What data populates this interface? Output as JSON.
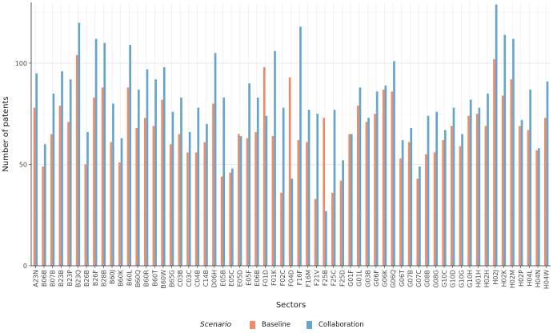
{
  "chart_data": {
    "type": "bar",
    "title": "",
    "xlabel": "Sectors",
    "ylabel": "Number of patents",
    "ylim": [
      0,
      130
    ],
    "yticks": [
      0,
      50,
      100
    ],
    "grid": true,
    "legend": {
      "title": "Scenario",
      "position": "bottom"
    },
    "categories": [
      "A23N",
      "B06B",
      "B07B",
      "B23B",
      "B23P",
      "B23Q",
      "B26B",
      "B26F",
      "B28B",
      "B60J",
      "B60K",
      "B60L",
      "B60Q",
      "B60R",
      "B60T",
      "B60W",
      "B65G",
      "C03B",
      "C03C",
      "C04B",
      "C14B",
      "D06H",
      "E05B",
      "E05C",
      "E05D",
      "E05F",
      "E06B",
      "F01D",
      "F01K",
      "F02C",
      "F04D",
      "F16F",
      "F16M",
      "F21V",
      "F25B",
      "F25C",
      "F25D",
      "G01F",
      "G01L",
      "G03B",
      "G06F",
      "G06K",
      "G06Q",
      "G06T",
      "G07B",
      "G07C",
      "G08B",
      "G08G",
      "G10C",
      "G10D",
      "G10G",
      "G10H",
      "H01H",
      "H02H",
      "H02J",
      "H02K",
      "H02M",
      "H02P",
      "H04L",
      "H04N",
      "H04W"
    ],
    "series": [
      {
        "name": "Baseline",
        "color": "#F08C67",
        "values": [
          78,
          49,
          65,
          79,
          71,
          104,
          50,
          83,
          88,
          61,
          51,
          88,
          68,
          73,
          69,
          82,
          60,
          65,
          56,
          56,
          61,
          80,
          44,
          46,
          65,
          63,
          66,
          98,
          64,
          36,
          93,
          62,
          61,
          33,
          73,
          36,
          42,
          65,
          79,
          71,
          75,
          87,
          86,
          53,
          61,
          43,
          55,
          56,
          62,
          69,
          59,
          74,
          75,
          69,
          102,
          84,
          92,
          69,
          67,
          57,
          73
        ]
      },
      {
        "name": "Collaboration",
        "color": "#66A6CE",
        "values": [
          95,
          60,
          85,
          96,
          92,
          120,
          66,
          112,
          110,
          80,
          63,
          109,
          87,
          97,
          92,
          98,
          76,
          83,
          66,
          78,
          70,
          105,
          83,
          48,
          64,
          90,
          83,
          74,
          106,
          78,
          43,
          118,
          77,
          75,
          27,
          77,
          52,
          65,
          88,
          73,
          86,
          89,
          101,
          62,
          68,
          49,
          74,
          76,
          67,
          78,
          65,
          82,
          78,
          85,
          129,
          114,
          112,
          72,
          87,
          58,
          91
        ]
      }
    ]
  }
}
